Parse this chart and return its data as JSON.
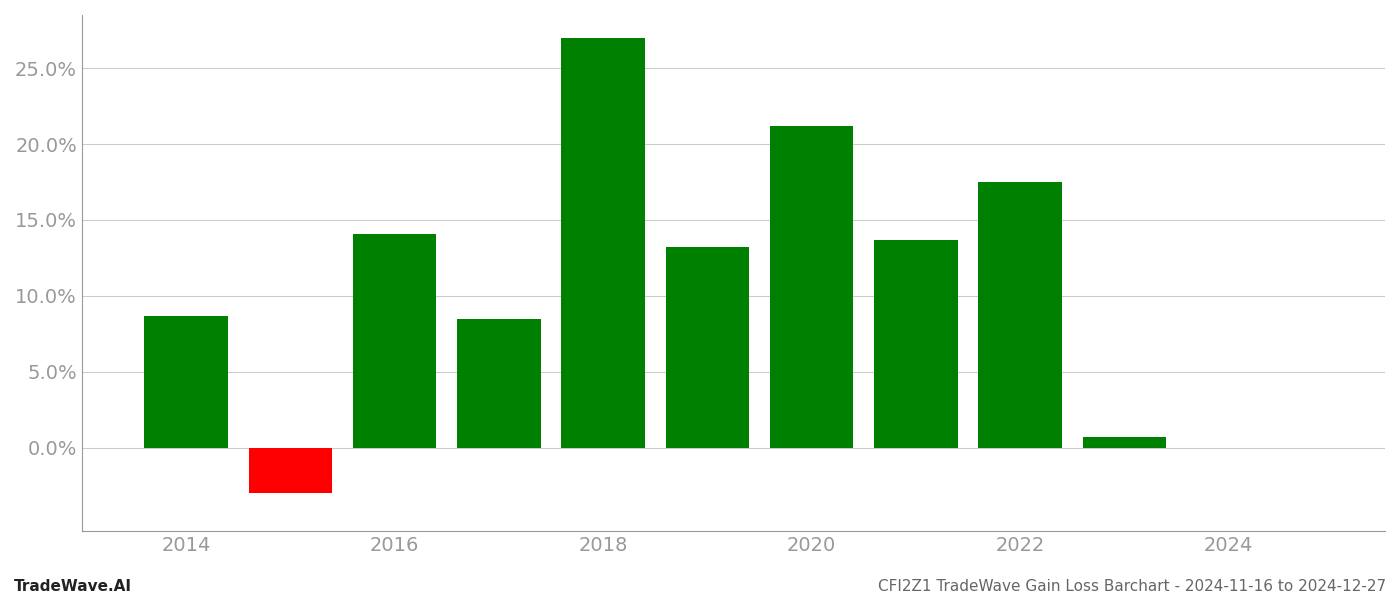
{
  "years": [
    2014,
    2015,
    2016,
    2017,
    2018,
    2019,
    2020,
    2021,
    2022,
    2023
  ],
  "values": [
    0.087,
    -0.03,
    0.141,
    0.085,
    0.27,
    0.132,
    0.212,
    0.137,
    0.175,
    0.007
  ],
  "colors": [
    "#008000",
    "#ff0000",
    "#008000",
    "#008000",
    "#008000",
    "#008000",
    "#008000",
    "#008000",
    "#008000",
    "#008000"
  ],
  "xlim": [
    2013.0,
    2025.5
  ],
  "ylim": [
    -0.055,
    0.285
  ],
  "yticks": [
    0.0,
    0.05,
    0.1,
    0.15,
    0.2,
    0.25
  ],
  "ytick_labels": [
    "0.0%",
    "5.0%",
    "10.0%",
    "15.0%",
    "20.0%",
    "25.0%"
  ],
  "xticks": [
    2014,
    2016,
    2018,
    2020,
    2022,
    2024
  ],
  "bar_width": 0.8,
  "grid_color": "#cccccc",
  "background_color": "#ffffff",
  "footer_left": "TradeWave.AI",
  "footer_right": "CFI2Z1 TradeWave Gain Loss Barchart - 2024-11-16 to 2024-12-27",
  "tick_color": "#999999",
  "spine_color": "#999999",
  "zero_line_color": "#999999",
  "ytick_fontsize": 14,
  "xtick_fontsize": 14
}
